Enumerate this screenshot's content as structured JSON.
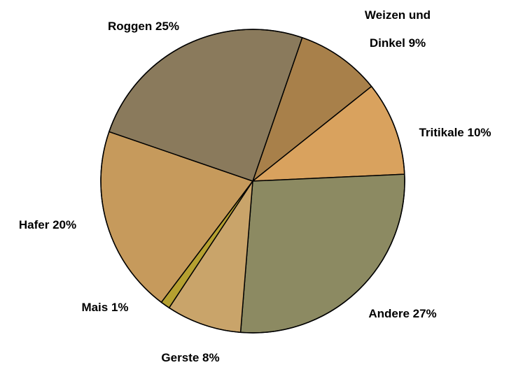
{
  "chart_data": {
    "type": "pie",
    "categories": [
      "Weizen und Dinkel",
      "Tritikale",
      "Andere",
      "Gerste",
      "Mais",
      "Hafer",
      "Roggen"
    ],
    "values": [
      9,
      10,
      27,
      8,
      1,
      20,
      25
    ],
    "value_labels": [
      "9%",
      "10%",
      "27%",
      "8%",
      "1%",
      "20%",
      "25%"
    ],
    "colors": [
      "#a8804a",
      "#d9a25e",
      "#8c8a62",
      "#c9a46a",
      "#b5a030",
      "#c69a5c",
      "#8a7a5c"
    ]
  }
}
